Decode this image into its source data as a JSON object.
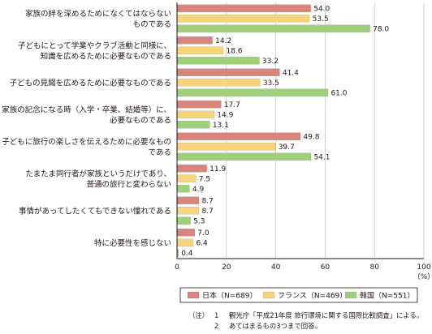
{
  "chart_data": {
    "type": "bar",
    "orientation": "horizontal",
    "categories": [
      [
        "家族の絆を深めるためになくてはならない",
        "ものである"
      ],
      [
        "子どもにとって学業やクラブ活動と同様に、",
        "知識を広めるために必要なものである"
      ],
      [
        "子どもの見聞を広めるために必要なものである"
      ],
      [
        "家族の記念になる時（入学・卒業、結婚等）に、",
        "必要なものである"
      ],
      [
        "子どもに旅行の楽しさを伝えるために必要なもの",
        "である"
      ],
      [
        "たまたま同行者が家族というだけであり、",
        "普通の旅行と変わらない"
      ],
      [
        "事情があってしたくてもできない憧れである"
      ],
      [
        "特に必要性を感じない"
      ]
    ],
    "series": [
      {
        "name": "日本（N=689）",
        "color": "#d9847c",
        "values": [
          54.0,
          14.2,
          41.4,
          17.7,
          49.8,
          11.9,
          8.7,
          7.0
        ]
      },
      {
        "name": "フランス（N=469）",
        "color": "#f6d47b",
        "values": [
          53.5,
          18.6,
          33.5,
          14.9,
          39.7,
          7.5,
          8.7,
          6.4
        ]
      },
      {
        "name": "韓国（N=551）",
        "color": "#9fcf7a",
        "values": [
          78.0,
          33.2,
          61.0,
          13.1,
          54.1,
          4.9,
          5.3,
          0.4
        ]
      }
    ],
    "xlim": [
      0,
      100
    ],
    "xticks": [
      "0",
      "20",
      "40",
      "60",
      "80",
      "100"
    ],
    "unit_label": "（%）",
    "grid": true,
    "legend_position": "bottom"
  },
  "notes": {
    "prefix": "（注）",
    "items": [
      {
        "num": "1",
        "text": "観光庁「平成21年度 旅行環境に関する国際比較調査」による。"
      },
      {
        "num": "2",
        "text": "あてはまるもの3つまで回答。"
      }
    ]
  }
}
